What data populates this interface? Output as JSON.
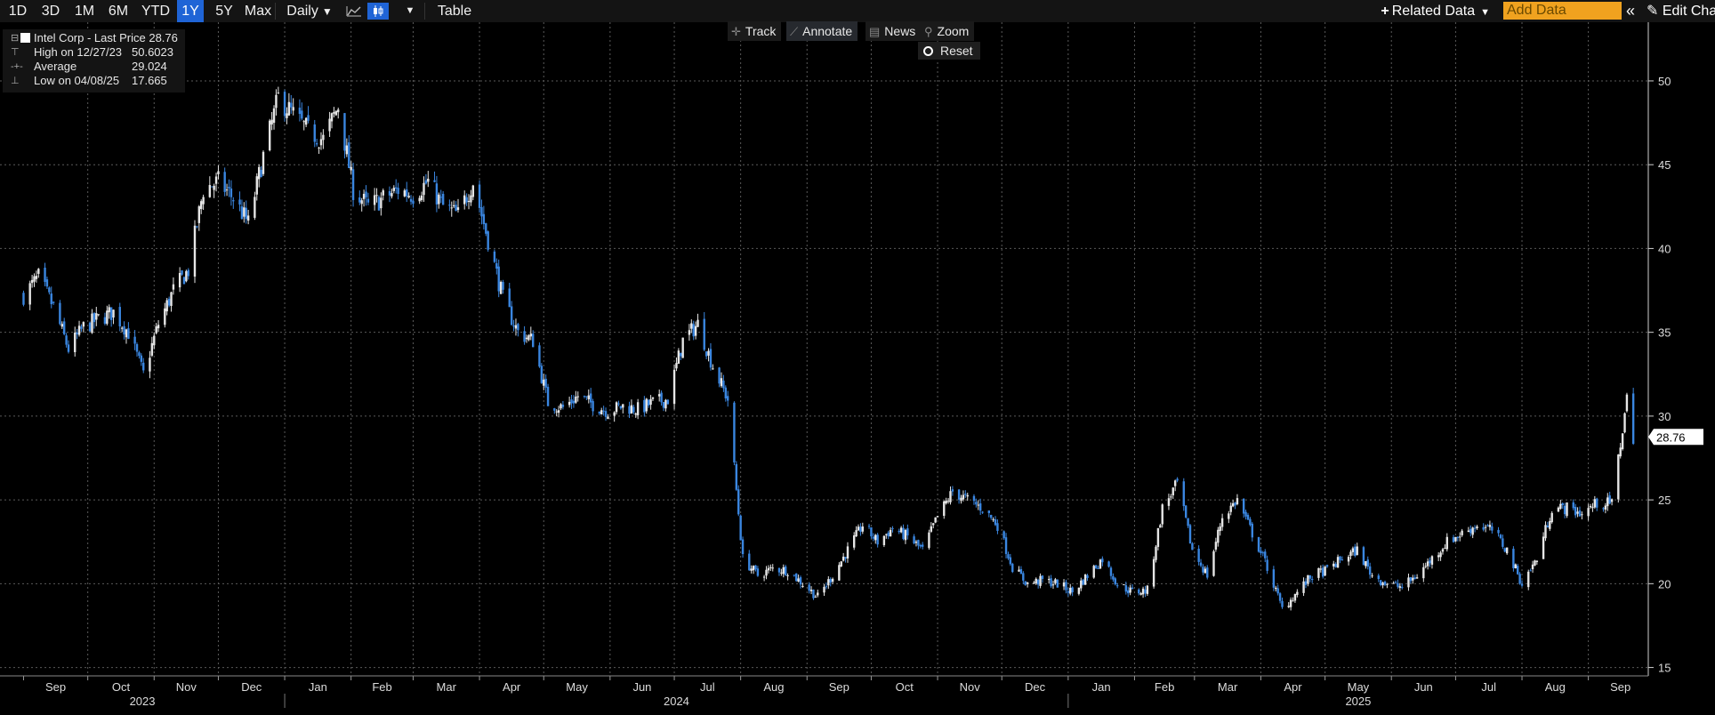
{
  "toolbar": {
    "ranges": [
      "1D",
      "3D",
      "1M",
      "6M",
      "YTD",
      "1Y",
      "5Y",
      "Max"
    ],
    "active_range": "1Y",
    "frequency": "Daily",
    "table_label": "Table",
    "related_data_label": "Related Data",
    "add_data_placeholder": "Add Data",
    "edit_chart_label": "Edit Cha",
    "active_chart_icon": "candlestick-icon",
    "icons": [
      "line-chart-icon",
      "candlestick-icon",
      "dropdown-caret-icon",
      "double-chevron-left-icon",
      "pencil-icon"
    ]
  },
  "chart_tools": {
    "track": "Track",
    "annotate": "Annotate",
    "news": "News",
    "zoom": "Zoom",
    "reset": "Reset"
  },
  "legend": {
    "security": "Intel Corp - Last Price",
    "last_price": "28.76",
    "high_label": "High on 12/27/23",
    "high_value": "50.6023",
    "average_label": "Average",
    "average_value": "29.024",
    "low_label": "Low on 04/08/25",
    "low_value": "17.665"
  },
  "colors": {
    "background": "#000000",
    "up_candle": "#e6e6e6",
    "down_candle": "#3a86e0",
    "grid": "#5a5a5a",
    "active_button": "#1f64d6",
    "add_data_field": "#f0a21f"
  },
  "chart_data": {
    "type": "candlestick",
    "security": "Intel Corp",
    "frequency": "Daily",
    "y_axis": {
      "ticks": [
        15,
        20,
        25,
        30,
        35,
        40,
        45,
        50
      ],
      "range": [
        14.5,
        53.5
      ],
      "position": "right"
    },
    "x_axis": {
      "month_labels": [
        "Sep",
        "Oct",
        "Nov",
        "Dec",
        "Jan",
        "Feb",
        "Mar",
        "Apr",
        "May",
        "Jun",
        "Jul",
        "Aug",
        "Sep",
        "Oct",
        "Nov",
        "Dec",
        "Jan",
        "Feb",
        "Mar",
        "Apr",
        "May",
        "Jun",
        "Jul",
        "Aug",
        "Sep"
      ],
      "year_labels": [
        "2023",
        "2024",
        "2025"
      ]
    },
    "grid": true,
    "last_price_marker": 28.76,
    "approx_close_path": [
      [
        "2023-09-01",
        37.2
      ],
      [
        "2023-09-08",
        38.3
      ],
      [
        "2023-09-15",
        36.5
      ],
      [
        "2023-09-22",
        34.0
      ],
      [
        "2023-09-29",
        35.3
      ],
      [
        "2023-10-06",
        35.8
      ],
      [
        "2023-10-13",
        36.2
      ],
      [
        "2023-10-20",
        35.0
      ],
      [
        "2023-10-27",
        32.5
      ],
      [
        "2023-11-03",
        35.5
      ],
      [
        "2023-11-10",
        37.5
      ],
      [
        "2023-11-17",
        38.7
      ],
      [
        "2023-11-24",
        43.5
      ],
      [
        "2023-12-01",
        44.0
      ],
      [
        "2023-12-08",
        43.0
      ],
      [
        "2023-12-15",
        41.5
      ],
      [
        "2023-12-22",
        45.5
      ],
      [
        "2023-12-29",
        49.0
      ],
      [
        "2024-01-05",
        48.0
      ],
      [
        "2024-01-12",
        47.0
      ],
      [
        "2024-01-19",
        46.5
      ],
      [
        "2024-01-26",
        48.5
      ],
      [
        "2024-02-02",
        43.5
      ],
      [
        "2024-02-09",
        42.5
      ],
      [
        "2024-02-16",
        43.0
      ],
      [
        "2024-02-23",
        43.5
      ],
      [
        "2024-03-01",
        43.2
      ],
      [
        "2024-03-08",
        44.0
      ],
      [
        "2024-03-15",
        42.5
      ],
      [
        "2024-03-22",
        42.0
      ],
      [
        "2024-03-29",
        44.0
      ],
      [
        "2024-04-05",
        40.5
      ],
      [
        "2024-04-12",
        37.0
      ],
      [
        "2024-04-19",
        35.0
      ],
      [
        "2024-04-26",
        34.5
      ],
      [
        "2024-05-03",
        30.8
      ],
      [
        "2024-05-10",
        30.5
      ],
      [
        "2024-05-17",
        31.2
      ],
      [
        "2024-05-24",
        30.7
      ],
      [
        "2024-05-31",
        30.3
      ],
      [
        "2024-06-07",
        30.6
      ],
      [
        "2024-06-14",
        30.4
      ],
      [
        "2024-06-21",
        30.8
      ],
      [
        "2024-06-28",
        31.0
      ],
      [
        "2024-07-05",
        34.5
      ],
      [
        "2024-07-12",
        35.5
      ],
      [
        "2024-07-19",
        33.0
      ],
      [
        "2024-07-26",
        31.0
      ],
      [
        "2024-08-02",
        21.5
      ],
      [
        "2024-08-09",
        20.5
      ],
      [
        "2024-08-16",
        20.9
      ],
      [
        "2024-08-23",
        20.8
      ],
      [
        "2024-08-30",
        20.0
      ],
      [
        "2024-09-06",
        19.2
      ],
      [
        "2024-09-13",
        20.5
      ],
      [
        "2024-09-20",
        22.0
      ],
      [
        "2024-09-27",
        23.5
      ],
      [
        "2024-10-04",
        22.5
      ],
      [
        "2024-10-11",
        23.3
      ],
      [
        "2024-10-18",
        22.8
      ],
      [
        "2024-10-25",
        22.0
      ],
      [
        "2024-11-01",
        24.0
      ],
      [
        "2024-11-08",
        25.5
      ],
      [
        "2024-11-15",
        25.0
      ],
      [
        "2024-11-22",
        24.5
      ],
      [
        "2024-11-29",
        23.5
      ],
      [
        "2024-12-06",
        21.0
      ],
      [
        "2024-12-13",
        20.0
      ],
      [
        "2024-12-20",
        20.2
      ],
      [
        "2024-12-27",
        20.0
      ],
      [
        "2025-01-03",
        19.5
      ],
      [
        "2025-01-10",
        20.5
      ],
      [
        "2025-01-17",
        21.5
      ],
      [
        "2025-01-24",
        20.0
      ],
      [
        "2025-01-31",
        19.5
      ],
      [
        "2025-02-07",
        19.6
      ],
      [
        "2025-02-14",
        24.5
      ],
      [
        "2025-02-21",
        26.0
      ],
      [
        "2025-02-28",
        22.0
      ],
      [
        "2025-03-07",
        20.5
      ],
      [
        "2025-03-14",
        24.0
      ],
      [
        "2025-03-21",
        25.0
      ],
      [
        "2025-03-28",
        23.0
      ],
      [
        "2025-04-04",
        21.0
      ],
      [
        "2025-04-11",
        18.5
      ],
      [
        "2025-04-18",
        19.5
      ],
      [
        "2025-04-25",
        20.5
      ],
      [
        "2025-05-02",
        20.8
      ],
      [
        "2025-05-09",
        21.5
      ],
      [
        "2025-05-16",
        22.0
      ],
      [
        "2025-05-23",
        20.5
      ],
      [
        "2025-05-30",
        20.0
      ],
      [
        "2025-06-06",
        19.8
      ],
      [
        "2025-06-13",
        20.5
      ],
      [
        "2025-06-20",
        21.5
      ],
      [
        "2025-06-27",
        22.5
      ],
      [
        "2025-07-04",
        23.0
      ],
      [
        "2025-07-11",
        23.5
      ],
      [
        "2025-07-18",
        23.2
      ],
      [
        "2025-07-25",
        22.0
      ],
      [
        "2025-08-01",
        20.0
      ],
      [
        "2025-08-08",
        21.5
      ],
      [
        "2025-08-15",
        24.5
      ],
      [
        "2025-08-22",
        24.5
      ],
      [
        "2025-08-29",
        24.2
      ],
      [
        "2025-09-05",
        24.8
      ],
      [
        "2025-09-12",
        24.8
      ],
      [
        "2025-09-19",
        31.0
      ],
      [
        "2025-09-22",
        28.76
      ]
    ]
  }
}
